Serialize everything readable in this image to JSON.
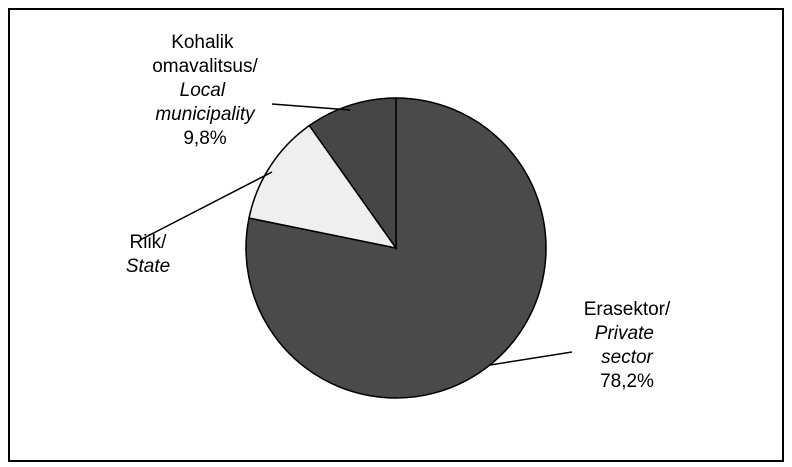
{
  "chart_data": {
    "type": "pie",
    "categories": [
      "Erasektor/",
      "Riik/",
      "Kohalik omavalitsus/"
    ],
    "categories_en": [
      "Private sector",
      "State",
      "Local municipality"
    ],
    "values": [
      78.2,
      12.0,
      9.8
    ],
    "value_labels": [
      "78,2%",
      null,
      "9,8%"
    ],
    "colors": [
      "#4a4a4a",
      "#efefef",
      "#464646"
    ]
  }
}
